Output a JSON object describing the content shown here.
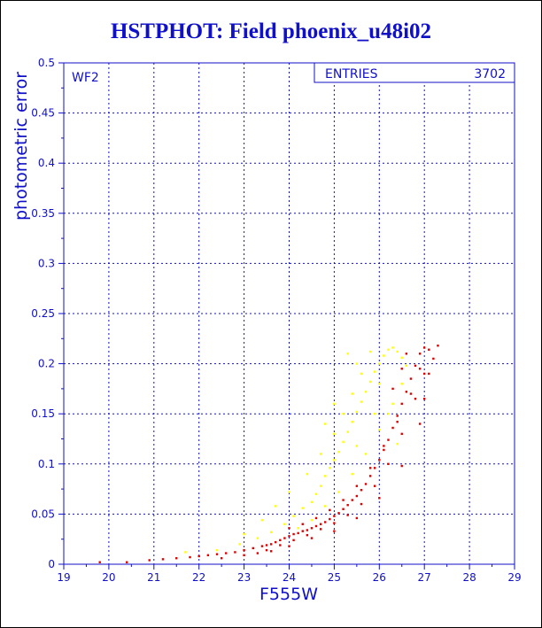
{
  "colors": {
    "axis": "#1010c8",
    "series_main": "#e00000",
    "series_alt": "#ffff00",
    "series_alt_edge": "#c8a000"
  },
  "chart_data": {
    "type": "scatter",
    "title": "HSTPHOT: Field phoenix_u48i02",
    "xlabel": "F555W",
    "ylabel": "photometric error",
    "panel_label": "WF2",
    "stats_box": {
      "label": "ENTRIES",
      "value": "3702"
    },
    "xlim": [
      19,
      29
    ],
    "ylim": [
      0,
      0.5
    ],
    "xticks": [
      "19",
      "20",
      "21",
      "22",
      "23",
      "24",
      "25",
      "26",
      "27",
      "28",
      "29"
    ],
    "yticks": [
      "0",
      "0.05",
      "0.1",
      "0.15",
      "0.2",
      "0.25",
      "0.3",
      "0.35",
      "0.4",
      "0.45",
      "0.5"
    ],
    "grid": true,
    "series": [
      {
        "color": "#e00000",
        "points": [
          [
            19.8,
            0.002
          ],
          [
            20.4,
            0.002
          ],
          [
            20.9,
            0.004
          ],
          [
            21.2,
            0.005
          ],
          [
            21.5,
            0.006
          ],
          [
            21.8,
            0.007
          ],
          [
            22.0,
            0.008
          ],
          [
            22.2,
            0.009
          ],
          [
            22.4,
            0.01
          ],
          [
            22.6,
            0.011
          ],
          [
            22.8,
            0.012
          ],
          [
            23.0,
            0.014
          ],
          [
            23.2,
            0.016
          ],
          [
            23.4,
            0.018
          ],
          [
            23.5,
            0.019
          ],
          [
            23.6,
            0.02
          ],
          [
            23.7,
            0.022
          ],
          [
            23.8,
            0.024
          ],
          [
            23.9,
            0.026
          ],
          [
            24.0,
            0.028
          ],
          [
            24.1,
            0.03
          ],
          [
            24.2,
            0.031
          ],
          [
            24.3,
            0.033
          ],
          [
            24.4,
            0.034
          ],
          [
            24.5,
            0.036
          ],
          [
            24.6,
            0.038
          ],
          [
            24.7,
            0.04
          ],
          [
            24.8,
            0.042
          ],
          [
            24.9,
            0.045
          ],
          [
            25.0,
            0.048
          ],
          [
            25.1,
            0.051
          ],
          [
            25.2,
            0.055
          ],
          [
            25.3,
            0.059
          ],
          [
            25.4,
            0.064
          ],
          [
            25.5,
            0.068
          ],
          [
            25.6,
            0.074
          ],
          [
            25.7,
            0.08
          ],
          [
            25.8,
            0.088
          ],
          [
            25.9,
            0.096
          ],
          [
            26.0,
            0.104
          ],
          [
            26.1,
            0.114
          ],
          [
            26.2,
            0.124
          ],
          [
            26.3,
            0.136
          ],
          [
            26.4,
            0.148
          ],
          [
            26.5,
            0.16
          ],
          [
            26.6,
            0.172
          ],
          [
            26.7,
            0.185
          ],
          [
            26.8,
            0.198
          ],
          [
            26.9,
            0.21
          ],
          [
            27.0,
            0.216
          ],
          [
            23.5,
            0.014
          ],
          [
            23.8,
            0.019
          ],
          [
            24.1,
            0.024
          ],
          [
            24.4,
            0.029
          ],
          [
            24.7,
            0.035
          ],
          [
            25.0,
            0.041
          ],
          [
            25.3,
            0.049
          ],
          [
            25.6,
            0.06
          ],
          [
            25.9,
            0.078
          ],
          [
            26.2,
            0.1
          ],
          [
            26.5,
            0.13
          ],
          [
            26.8,
            0.165
          ],
          [
            27.0,
            0.19
          ],
          [
            24.0,
            0.036
          ],
          [
            24.3,
            0.04
          ],
          [
            24.6,
            0.046
          ],
          [
            24.9,
            0.054
          ],
          [
            25.2,
            0.064
          ],
          [
            25.5,
            0.078
          ],
          [
            25.8,
            0.096
          ],
          [
            26.1,
            0.118
          ],
          [
            26.4,
            0.142
          ],
          [
            26.7,
            0.17
          ],
          [
            26.9,
            0.195
          ],
          [
            27.1,
            0.214
          ],
          [
            26.3,
            0.175
          ],
          [
            26.5,
            0.195
          ],
          [
            26.6,
            0.21
          ],
          [
            22.5,
            0.006
          ],
          [
            23.0,
            0.009
          ],
          [
            23.3,
            0.011
          ],
          [
            23.6,
            0.013
          ],
          [
            24.0,
            0.018
          ],
          [
            24.5,
            0.026
          ],
          [
            25.0,
            0.033
          ],
          [
            25.5,
            0.046
          ],
          [
            26.0,
            0.066
          ],
          [
            26.5,
            0.098
          ],
          [
            26.9,
            0.14
          ],
          [
            27.0,
            0.165
          ],
          [
            27.1,
            0.19
          ],
          [
            27.2,
            0.205
          ],
          [
            27.3,
            0.218
          ]
        ]
      },
      {
        "color": "#ffff00",
        "points": [
          [
            21.7,
            0.012
          ],
          [
            22.4,
            0.014
          ],
          [
            22.9,
            0.02
          ],
          [
            23.3,
            0.026
          ],
          [
            23.6,
            0.032
          ],
          [
            23.9,
            0.04
          ],
          [
            24.1,
            0.048
          ],
          [
            24.3,
            0.056
          ],
          [
            24.5,
            0.062
          ],
          [
            24.6,
            0.07
          ],
          [
            24.7,
            0.078
          ],
          [
            24.8,
            0.088
          ],
          [
            24.9,
            0.096
          ],
          [
            25.0,
            0.104
          ],
          [
            25.1,
            0.112
          ],
          [
            25.2,
            0.122
          ],
          [
            25.3,
            0.132
          ],
          [
            25.4,
            0.142
          ],
          [
            25.5,
            0.152
          ],
          [
            25.6,
            0.162
          ],
          [
            25.7,
            0.172
          ],
          [
            25.8,
            0.182
          ],
          [
            25.9,
            0.192
          ],
          [
            26.0,
            0.2
          ],
          [
            26.1,
            0.208
          ],
          [
            26.2,
            0.214
          ],
          [
            26.3,
            0.216
          ],
          [
            26.4,
            0.212
          ],
          [
            26.5,
            0.206
          ],
          [
            26.6,
            0.198
          ],
          [
            24.2,
            0.036
          ],
          [
            24.5,
            0.044
          ],
          [
            24.8,
            0.058
          ],
          [
            25.1,
            0.072
          ],
          [
            25.4,
            0.09
          ],
          [
            25.7,
            0.11
          ],
          [
            26.0,
            0.134
          ],
          [
            26.3,
            0.16
          ],
          [
            26.5,
            0.18
          ],
          [
            25.3,
            0.21
          ],
          [
            25.5,
            0.2
          ],
          [
            25.8,
            0.212
          ],
          [
            26.0,
            0.18
          ],
          [
            26.2,
            0.15
          ],
          [
            26.4,
            0.12
          ],
          [
            23.0,
            0.03
          ],
          [
            23.4,
            0.044
          ],
          [
            23.7,
            0.058
          ],
          [
            24.0,
            0.072
          ],
          [
            24.4,
            0.09
          ],
          [
            24.7,
            0.11
          ],
          [
            25.0,
            0.13
          ],
          [
            25.2,
            0.15
          ],
          [
            25.4,
            0.17
          ],
          [
            25.6,
            0.19
          ],
          [
            25.0,
            0.16
          ],
          [
            24.8,
            0.14
          ],
          [
            25.5,
            0.118
          ],
          [
            25.9,
            0.15
          ]
        ]
      }
    ]
  }
}
